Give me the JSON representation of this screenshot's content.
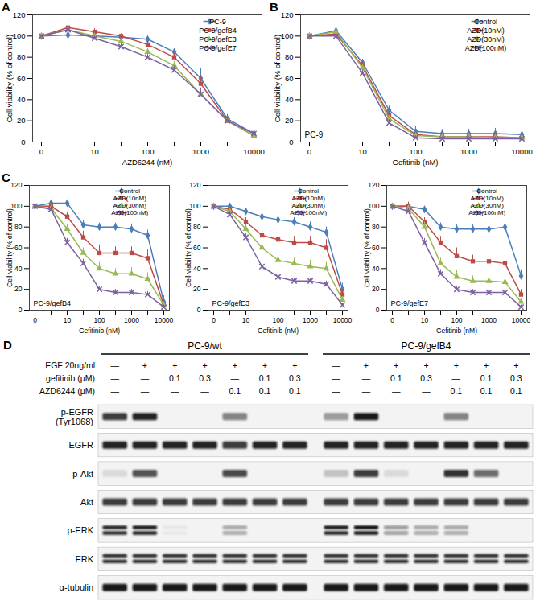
{
  "chart_data": [
    {
      "type": "line",
      "panel": "A",
      "categories": [
        "0",
        null,
        "10",
        null,
        "100",
        null,
        "1000",
        null,
        "10000"
      ],
      "xlabel": "AZD6244 (nM)",
      "ylabel": "Cell viability (% of control)",
      "ylim": [
        0,
        120
      ],
      "yticks": [
        0,
        20,
        40,
        60,
        80,
        100,
        120
      ],
      "legend": "top-right",
      "series": [
        {
          "name": "PC-9",
          "color": "#4a7ebb",
          "marker": "diamond",
          "values": [
            100,
            101,
            100,
            99,
            97,
            85,
            60,
            22,
            8
          ],
          "errors": [
            0,
            3,
            2,
            2,
            3,
            3,
            10,
            4,
            2
          ]
        },
        {
          "name": "PC-9/gefB4",
          "color": "#be4b48",
          "marker": "square",
          "values": [
            100,
            108,
            104,
            100,
            92,
            80,
            55,
            20,
            6
          ],
          "errors": [
            0,
            3,
            3,
            2,
            2,
            4,
            8,
            3,
            2
          ]
        },
        {
          "name": "PC-9/gefE3",
          "color": "#98b954",
          "marker": "triangle",
          "values": [
            100,
            106,
            100,
            95,
            85,
            72,
            45,
            20,
            6
          ],
          "errors": [
            0,
            3,
            2,
            2,
            3,
            4,
            6,
            3,
            2
          ]
        },
        {
          "name": "PC-9/gefE7",
          "color": "#7d60a0",
          "marker": "times",
          "values": [
            100,
            106,
            98,
            90,
            80,
            68,
            45,
            20,
            8
          ],
          "errors": [
            0,
            2,
            2,
            3,
            3,
            4,
            6,
            3,
            2
          ]
        }
      ]
    },
    {
      "type": "line",
      "panel": "B",
      "annotation": "PC-9",
      "categories": [
        "0",
        null,
        "10",
        null,
        "100",
        null,
        "1000",
        null,
        "10000"
      ],
      "xlabel": "Gefitinib (nM)",
      "ylabel": "Cell viability (% of control)",
      "ylim": [
        0,
        120
      ],
      "yticks": [
        0,
        20,
        40,
        60,
        80,
        100,
        120
      ],
      "legend": "top-right",
      "series": [
        {
          "name": "Control",
          "color": "#4a7ebb",
          "marker": "diamond",
          "values": [
            100,
            105,
            75,
            30,
            10,
            8,
            8,
            8,
            7
          ],
          "errors": [
            0,
            8,
            3,
            4,
            5,
            4,
            4,
            5,
            6
          ]
        },
        {
          "name": "AZD(10nM)",
          "color": "#be4b48",
          "marker": "square",
          "values": [
            100,
            102,
            72,
            25,
            7,
            5,
            5,
            5,
            4
          ],
          "errors": [
            0,
            4,
            3,
            3,
            2,
            2,
            2,
            2,
            2
          ]
        },
        {
          "name": "AZD(30nM)",
          "color": "#98b954",
          "marker": "triangle",
          "values": [
            100,
            104,
            70,
            22,
            6,
            5,
            5,
            4,
            4
          ],
          "errors": [
            0,
            4,
            3,
            3,
            2,
            2,
            2,
            2,
            2
          ]
        },
        {
          "name": "AZD(100nM)",
          "color": "#7d60a0",
          "marker": "times",
          "values": [
            100,
            100,
            65,
            18,
            4,
            3,
            3,
            3,
            3
          ],
          "errors": [
            0,
            4,
            3,
            3,
            2,
            2,
            2,
            2,
            2
          ]
        }
      ]
    },
    {
      "type": "line",
      "panel": "C",
      "annotation": "PC-9/gefB4",
      "categories": [
        "0",
        null,
        "10",
        null,
        "100",
        null,
        "1000",
        null,
        "10000"
      ],
      "xlabel": "Gefitinib (nM)",
      "ylabel": "Cell viability (% of control)",
      "ylim": [
        0,
        120
      ],
      "yticks": [
        0,
        20,
        40,
        60,
        80,
        100,
        120
      ],
      "legend": "top-right",
      "series": [
        {
          "name": "Control",
          "color": "#4a7ebb",
          "marker": "diamond",
          "values": [
            100,
            103,
            103,
            82,
            80,
            80,
            78,
            72,
            8
          ],
          "errors": [
            0,
            3,
            3,
            4,
            4,
            4,
            5,
            5,
            6
          ]
        },
        {
          "name": "AZD(10nM)",
          "color": "#be4b48",
          "marker": "square",
          "values": [
            100,
            100,
            90,
            70,
            55,
            55,
            55,
            50,
            5
          ],
          "errors": [
            0,
            4,
            4,
            6,
            8,
            6,
            6,
            8,
            5
          ]
        },
        {
          "name": "AZD(30nM)",
          "color": "#98b954",
          "marker": "triangle",
          "values": [
            100,
            98,
            78,
            55,
            40,
            35,
            35,
            30,
            5
          ],
          "errors": [
            0,
            3,
            5,
            5,
            6,
            5,
            6,
            6,
            3
          ]
        },
        {
          "name": "AZD(100nM)",
          "color": "#7d60a0",
          "marker": "times",
          "values": [
            100,
            97,
            65,
            45,
            20,
            17,
            17,
            15,
            3
          ],
          "errors": [
            0,
            3,
            4,
            4,
            3,
            3,
            3,
            3,
            2
          ]
        }
      ]
    },
    {
      "type": "line",
      "annotation": "PC-9/gefE3",
      "categories": [
        "0",
        null,
        "10",
        null,
        "100",
        null,
        "1000",
        null,
        "10000"
      ],
      "xlabel": "Gefitinib (nM)",
      "ylabel": "Cell viability (% of control)",
      "ylim": [
        0,
        120
      ],
      "yticks": [
        0,
        20,
        40,
        60,
        80,
        100,
        120
      ],
      "legend": "top-right",
      "series": [
        {
          "name": "Control",
          "color": "#4a7ebb",
          "marker": "diamond",
          "values": [
            100,
            100,
            95,
            90,
            87,
            85,
            80,
            75,
            20
          ],
          "errors": [
            0,
            3,
            3,
            4,
            4,
            4,
            5,
            5,
            6
          ]
        },
        {
          "name": "AZD(10nM)",
          "color": "#be4b48",
          "marker": "square",
          "values": [
            100,
            97,
            85,
            72,
            68,
            65,
            65,
            60,
            15
          ],
          "errors": [
            0,
            4,
            4,
            6,
            8,
            6,
            6,
            8,
            5
          ]
        },
        {
          "name": "AZD(30nM)",
          "color": "#98b954",
          "marker": "triangle",
          "values": [
            100,
            95,
            78,
            60,
            48,
            45,
            42,
            40,
            10
          ],
          "errors": [
            0,
            3,
            5,
            5,
            6,
            5,
            6,
            6,
            3
          ]
        },
        {
          "name": "AZD(100nM)",
          "color": "#7d60a0",
          "marker": "times",
          "values": [
            100,
            92,
            70,
            42,
            32,
            28,
            28,
            25,
            5
          ],
          "errors": [
            0,
            3,
            4,
            4,
            3,
            3,
            3,
            3,
            2
          ]
        }
      ]
    },
    {
      "type": "line",
      "annotation": "PC-9/gefE7",
      "categories": [
        "0",
        null,
        "10",
        null,
        "100",
        null,
        "1000",
        null,
        "10000"
      ],
      "xlabel": "Gefitinib (nM)",
      "ylabel": "Cell viability (% of control)",
      "ylim": [
        0,
        120
      ],
      "yticks": [
        0,
        20,
        40,
        60,
        80,
        100,
        120
      ],
      "legend": "top-right",
      "series": [
        {
          "name": "Control",
          "color": "#4a7ebb",
          "marker": "diamond",
          "values": [
            100,
            100,
            97,
            80,
            78,
            78,
            78,
            80,
            33
          ],
          "errors": [
            0,
            3,
            3,
            4,
            4,
            4,
            5,
            5,
            6
          ]
        },
        {
          "name": "AZD(10nM)",
          "color": "#be4b48",
          "marker": "square",
          "values": [
            100,
            100,
            85,
            65,
            52,
            47,
            47,
            45,
            15
          ],
          "errors": [
            0,
            4,
            4,
            6,
            8,
            6,
            6,
            8,
            5
          ]
        },
        {
          "name": "AZD(30nM)",
          "color": "#98b954",
          "marker": "triangle",
          "values": [
            100,
            98,
            80,
            45,
            32,
            28,
            28,
            27,
            8
          ],
          "errors": [
            0,
            3,
            5,
            5,
            6,
            5,
            6,
            6,
            3
          ]
        },
        {
          "name": "AZD(100nM)",
          "color": "#7d60a0",
          "marker": "times",
          "values": [
            100,
            95,
            65,
            35,
            20,
            17,
            17,
            17,
            3
          ],
          "errors": [
            0,
            3,
            4,
            4,
            3,
            3,
            3,
            3,
            2
          ]
        }
      ]
    }
  ],
  "blot": {
    "panel": "D",
    "groups": [
      "PC-9/wt",
      "PC-9/gefB4"
    ],
    "conditions": [
      {
        "label": "EGF 20ng/ml",
        "values": [
          "—",
          "+",
          "+",
          "+",
          "+",
          "+",
          "+",
          "—",
          "+",
          "+",
          "+",
          "+",
          "+",
          "+"
        ]
      },
      {
        "label": "gefitinib (μM)",
        "values": [
          "—",
          "—",
          "0.1",
          "0.3",
          "—",
          "0.1",
          "0.3",
          "—",
          "—",
          "0.1",
          "0.3",
          "—",
          "0.1",
          "0.3"
        ]
      },
      {
        "label": "AZD6244 (μM)",
        "values": [
          "—",
          "—",
          "—",
          "—",
          "0.1",
          "0.1",
          "0.1",
          "—",
          "—",
          "—",
          "—",
          "0.1",
          "0.1",
          "0.1"
        ]
      }
    ],
    "rows": [
      {
        "label": "p-EGFR (Tyr1068)",
        "intensity": [
          0.8,
          0.9,
          0,
          0,
          0.5,
          0,
          0,
          0.4,
          0.95,
          0,
          0,
          0.5,
          0,
          0
        ]
      },
      {
        "label": "EGFR",
        "intensity": [
          0.9,
          0.9,
          0.9,
          0.9,
          0.8,
          0.9,
          0.9,
          0.9,
          0.9,
          0.9,
          0.9,
          0.9,
          0.9,
          0.9
        ]
      },
      {
        "label": "p-Akt",
        "intensity": [
          0.1,
          0.7,
          0,
          0,
          0.75,
          0,
          0,
          0.2,
          0.8,
          0.1,
          0,
          0.85,
          0.6,
          0
        ]
      },
      {
        "label": "Akt",
        "intensity": [
          0.8,
          0.8,
          0.8,
          0.8,
          0.8,
          0.8,
          0.8,
          0.8,
          0.8,
          0.8,
          0.8,
          0.8,
          0.8,
          0.8
        ]
      },
      {
        "label": "p-ERK",
        "doublet": true,
        "intensity": [
          0.9,
          0.95,
          0.05,
          0,
          0.35,
          0,
          0,
          0.95,
          1,
          0.4,
          0.35,
          0.35,
          0,
          0
        ]
      },
      {
        "label": "ERK",
        "doublet": true,
        "intensity": [
          0.85,
          0.85,
          0.85,
          0.85,
          0.85,
          0.85,
          0.85,
          0.85,
          0.85,
          0.85,
          0.85,
          0.85,
          0.85,
          0.85
        ]
      },
      {
        "label": "α-tubulin",
        "intensity": [
          0.95,
          0.95,
          0.95,
          0.95,
          0.95,
          0.95,
          0.95,
          0.95,
          0.95,
          0.95,
          0.95,
          0.95,
          0.95,
          0.95
        ]
      }
    ]
  }
}
